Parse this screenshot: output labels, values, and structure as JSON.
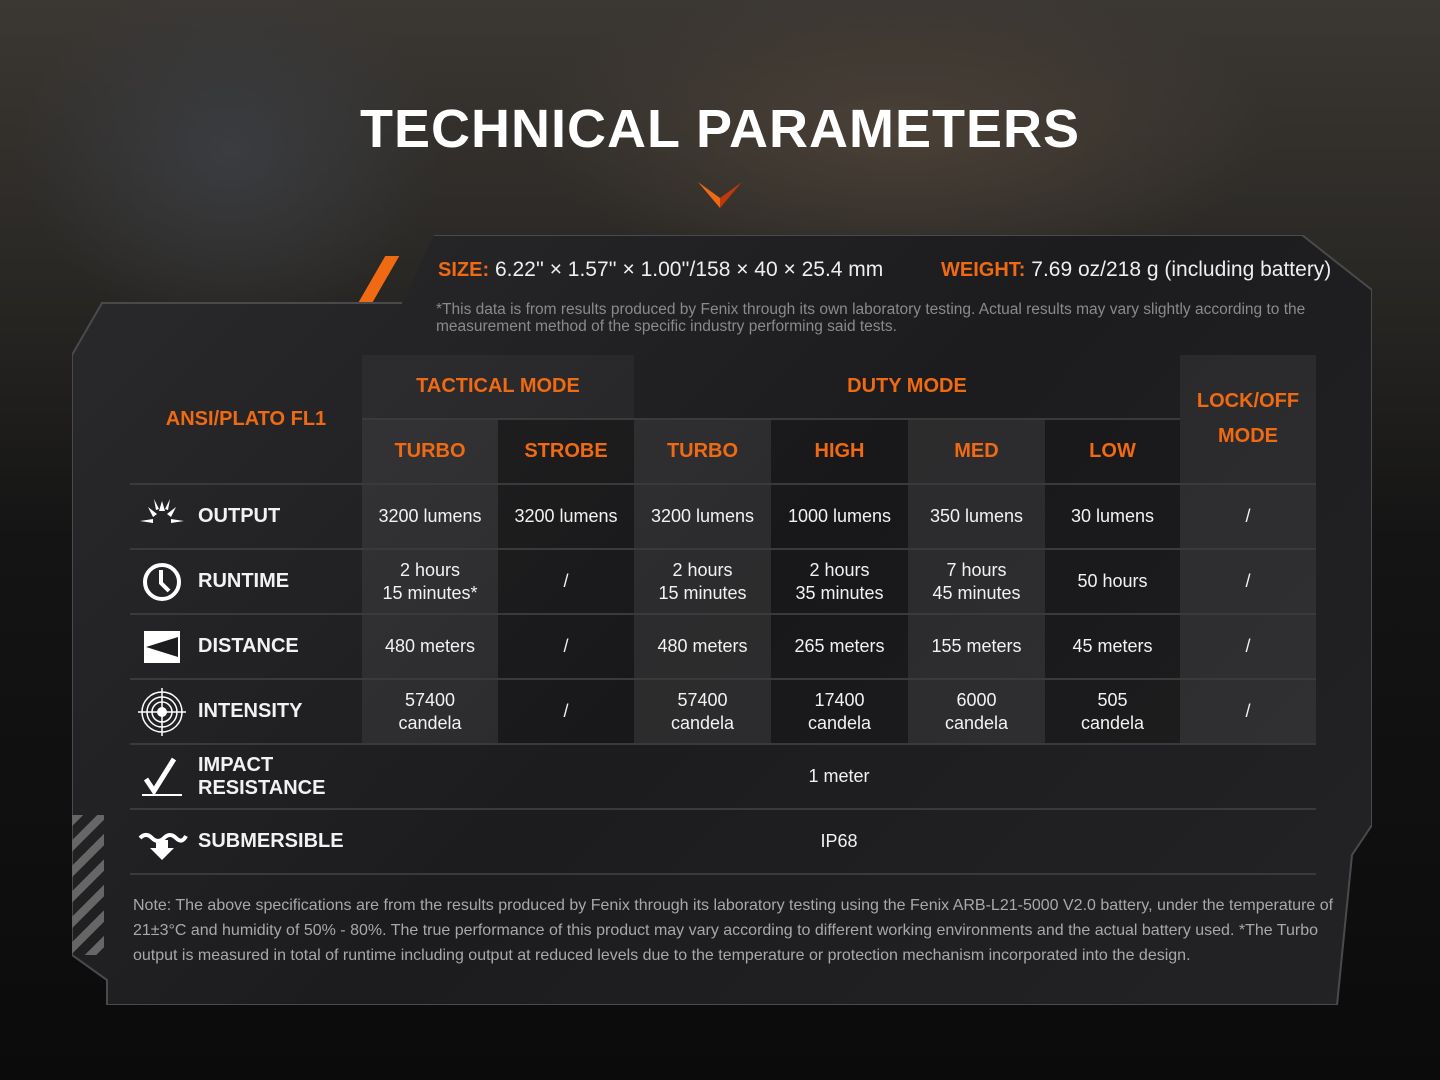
{
  "title": "TECHNICAL PARAMETERS",
  "specs": {
    "size_label": "SIZE:",
    "size_value": "6.22'' × 1.57'' × 1.00''/158 × 40 × 25.4 mm",
    "weight_label": "WEIGHT:",
    "weight_value": "7.69 oz/218 g (including battery)",
    "disclaimer": "*This data is from results produced by Fenix through its own laboratory testing. Actual results may vary slightly according to the measurement method of the specific industry performing said tests."
  },
  "table": {
    "corner": "ANSI/PLATO FL1",
    "group_tactical": "TACTICAL MODE",
    "group_duty": "DUTY MODE",
    "lockoff": "LOCK/OFF MODE",
    "modes": [
      "TURBO",
      "STROBE",
      "TURBO",
      "HIGH",
      "MED",
      "LOW"
    ],
    "rows": [
      {
        "icon": "sun-burst-icon",
        "label": "OUTPUT",
        "values": [
          "3200 lumens",
          "3200 lumens",
          "3200 lumens",
          "1000 lumens",
          "350 lumens",
          "30 lumens",
          "/"
        ]
      },
      {
        "icon": "clock-icon",
        "label": "RUNTIME",
        "values": [
          "2 hours\n15 minutes*",
          "/",
          "2 hours\n15 minutes",
          "2 hours\n35 minutes",
          "7 hours\n45 minutes",
          "50 hours",
          "/"
        ]
      },
      {
        "icon": "beam-distance-icon",
        "label": "DISTANCE",
        "values": [
          "480 meters",
          "/",
          "480 meters",
          "265 meters",
          "155 meters",
          "45 meters",
          "/"
        ]
      },
      {
        "icon": "target-icon",
        "label": "INTENSITY",
        "values": [
          "57400\ncandela",
          "/",
          "57400\ncandela",
          "17400\ncandela",
          "6000\ncandela",
          "505\ncandela",
          "/"
        ]
      }
    ],
    "spanned": [
      {
        "icon": "impact-check-icon",
        "label": "IMPACT\nRESISTANCE",
        "value": "1 meter"
      },
      {
        "icon": "submersible-icon",
        "label": "SUBMERSIBLE",
        "value": "IP68"
      }
    ]
  },
  "note": "Note: The above specifications are from the results produced by Fenix through its laboratory testing using the Fenix ARB-L21-5000 V2.0 battery, under the temperature of 21±3°C and humidity of 50% - 80%. The true performance of this product may vary according to different working environments and the actual battery used. *The Turbo output is measured in total of runtime including output at reduced levels due to the temperature or protection mechanism incorporated into the design.",
  "colors": {
    "accent": "#f06a14",
    "background": "#0b0b0c",
    "panel": "#1f1f21"
  }
}
